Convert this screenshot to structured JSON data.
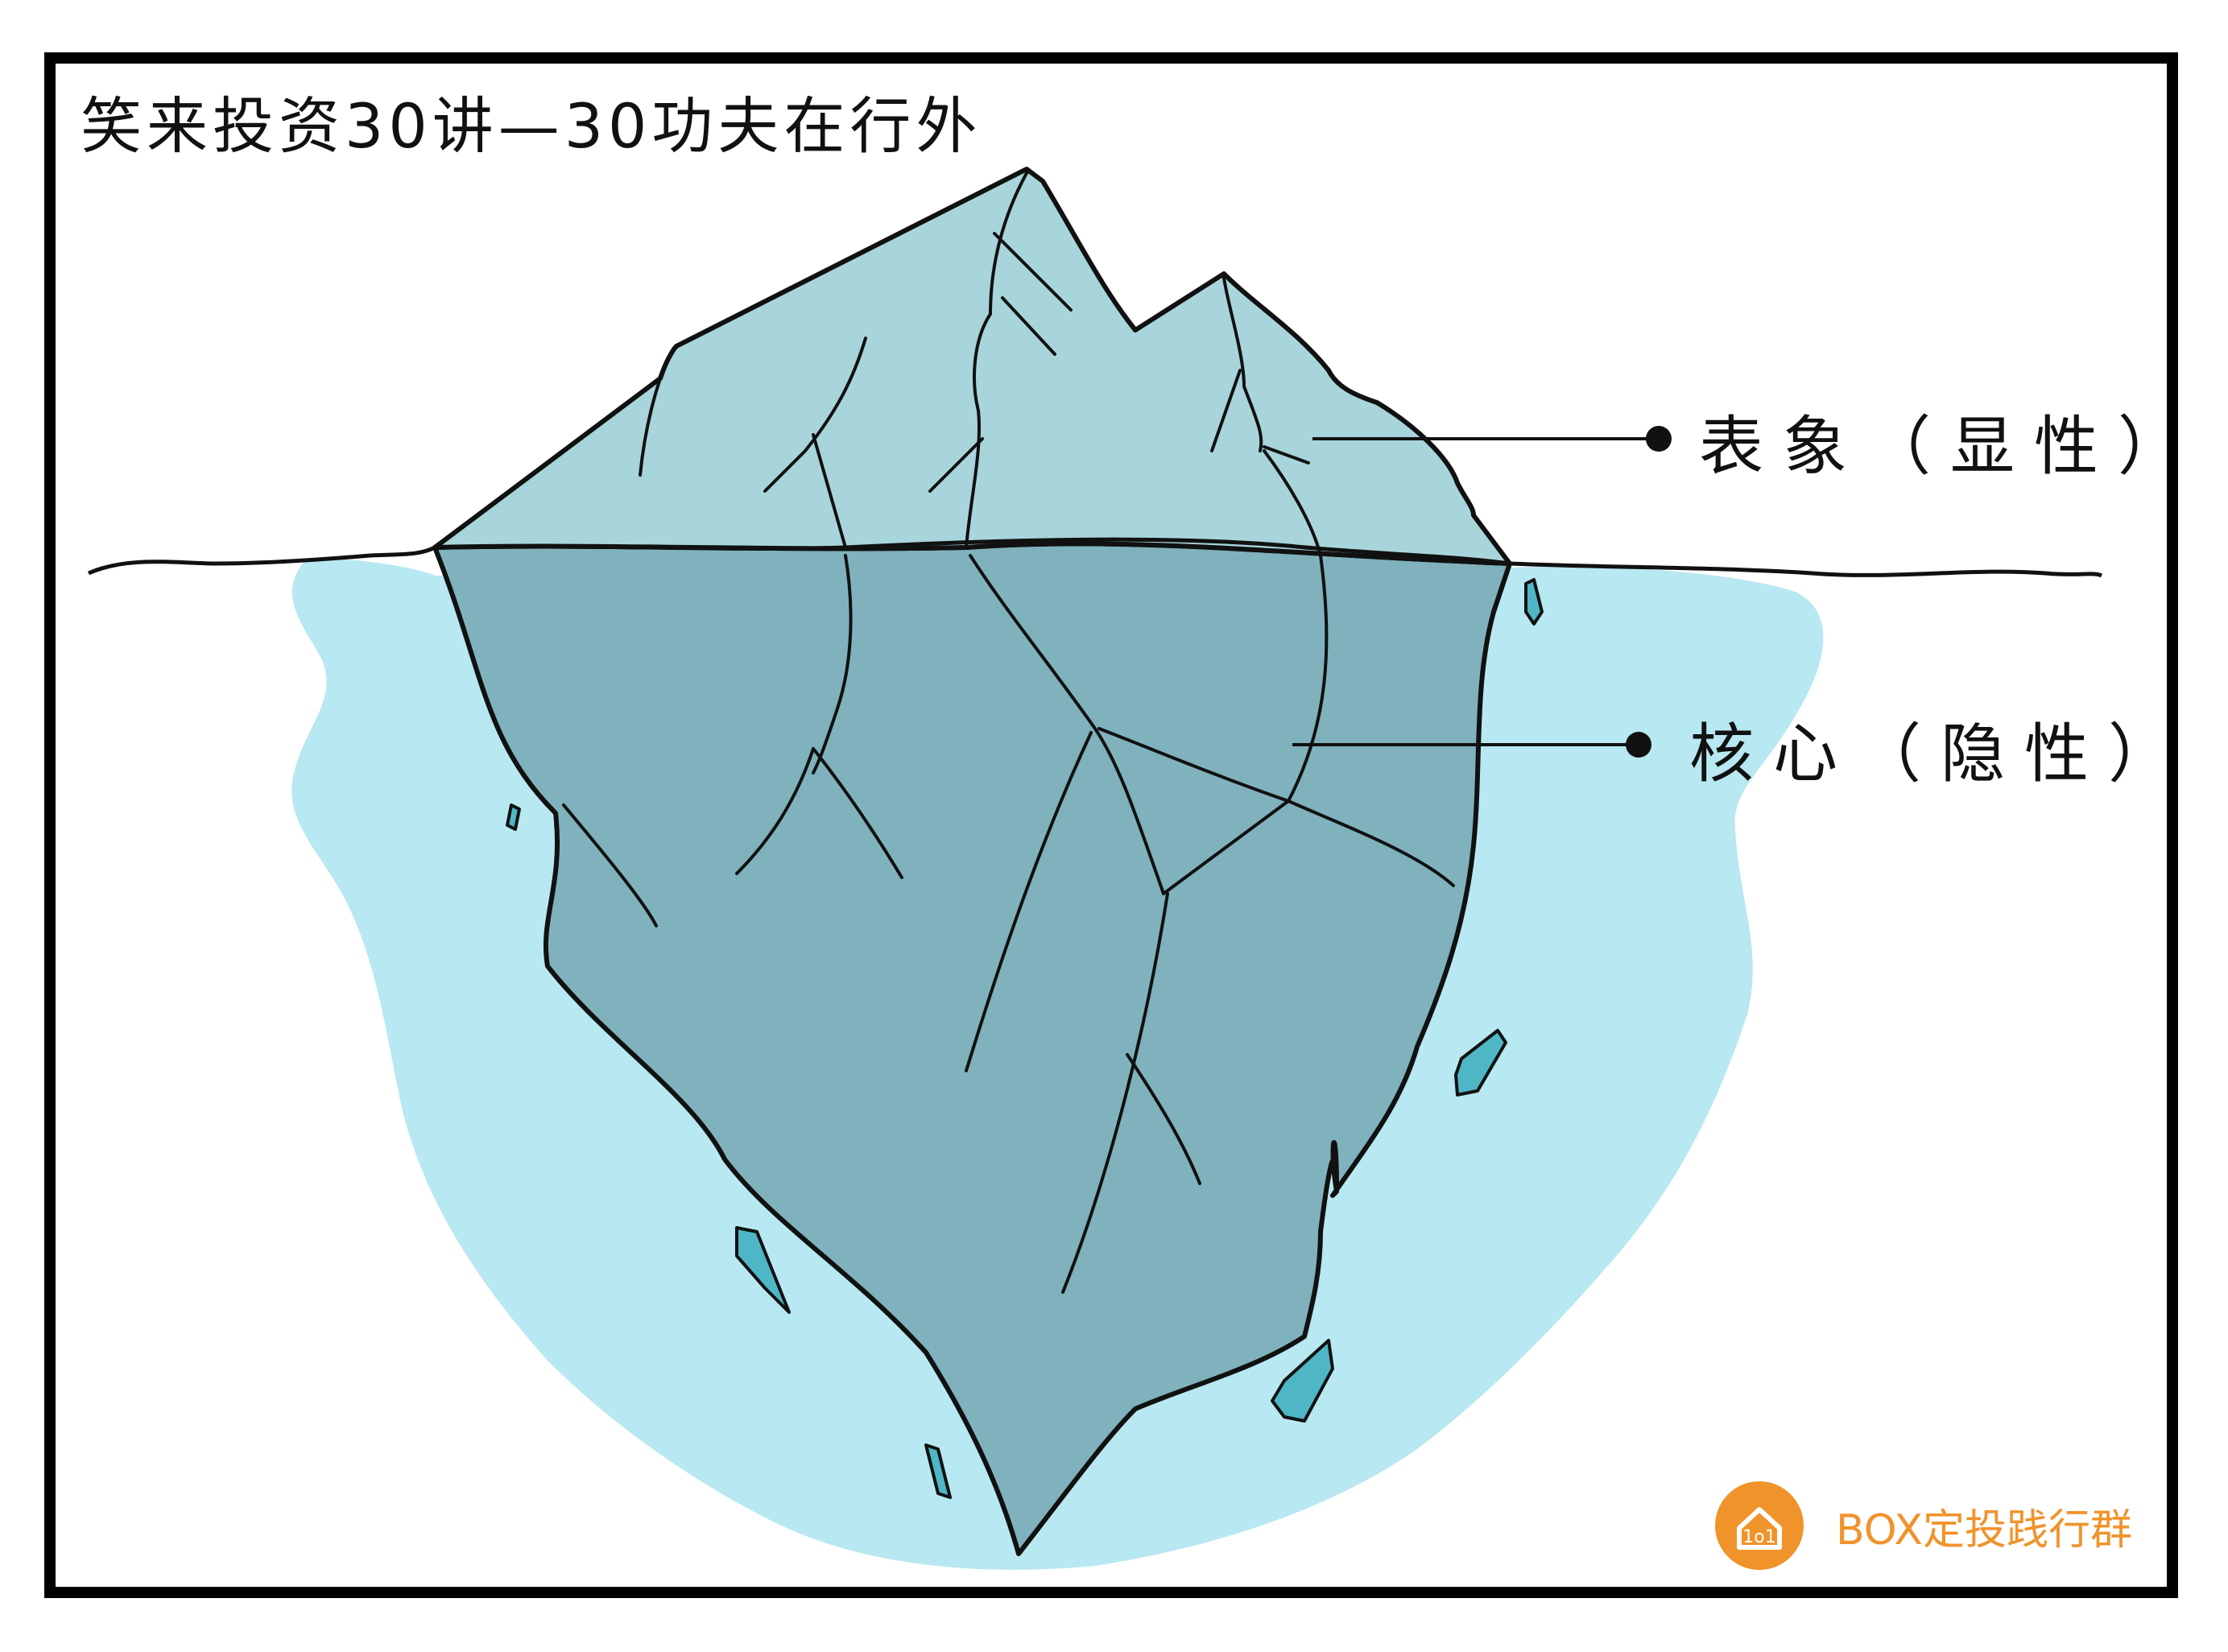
{
  "title": "笑来投资30讲—30功夫在行外",
  "labels": {
    "surface": "表象（显性）",
    "core": "核心（隐性）"
  },
  "brand": {
    "text": "BOX定投践行群",
    "logo_text": "1o1",
    "color": "#f0932b"
  },
  "colors": {
    "frame": "#000000",
    "iceberg_above": "#a8d5db",
    "iceberg_below": "#7fb2bc",
    "water": "#b8e8f1",
    "shard": "#4fb6c6",
    "line": "#111111"
  }
}
